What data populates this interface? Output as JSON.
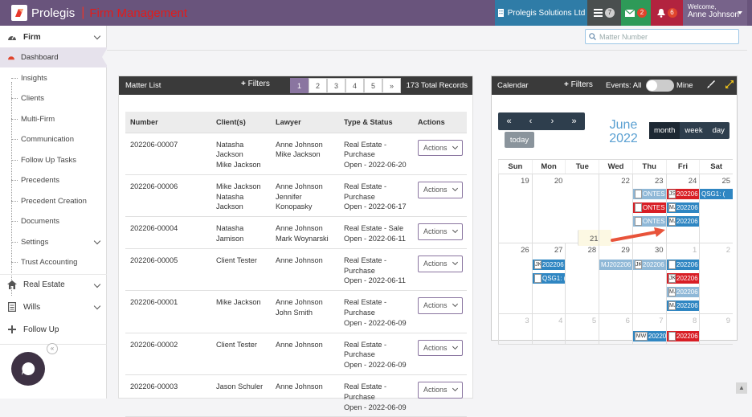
{
  "topbar": {
    "brand": "Prolegis",
    "app_name": "Firm Management",
    "firm": "Prolegis Solutions Ltd",
    "tasks_count": "7",
    "messages_count": "2",
    "notifications_count": "6",
    "welcome": "Welcome,",
    "user": "Anne Johnson",
    "colors": {
      "bar": "#69547c",
      "firm": "#2f7ca7",
      "messages": "#2e9a58",
      "notifications": "#b2233f"
    }
  },
  "search": {
    "placeholder": "Matter Number"
  },
  "sidebar": {
    "firm_label": "Firm",
    "items": [
      {
        "label": "Dashboard"
      },
      {
        "label": "Insights"
      },
      {
        "label": "Clients"
      },
      {
        "label": "Multi-Firm"
      },
      {
        "label": "Communication"
      },
      {
        "label": "Follow Up Tasks"
      },
      {
        "label": "Precedents"
      },
      {
        "label": "Precedent Creation"
      },
      {
        "label": "Documents"
      },
      {
        "label": "Settings"
      },
      {
        "label": "Trust Accounting"
      }
    ],
    "sections": [
      {
        "label": "Real Estate"
      },
      {
        "label": "Wills"
      },
      {
        "label": "Follow Up"
      }
    ]
  },
  "matter_list": {
    "title": "Matter List",
    "filters": "Filters",
    "pages": [
      "1",
      "2",
      "3",
      "4",
      "5",
      "»"
    ],
    "total": "173 Total Records",
    "columns": [
      "Number",
      "Client(s)",
      "Lawyer",
      "Type & Status",
      "Actions"
    ],
    "action_label": "Actions",
    "rows": [
      {
        "number": "202206-00007",
        "clients": [
          "Natasha Jackson",
          "Mike Jackson"
        ],
        "lawyers": [
          "Anne Johnson",
          "Mike Jackson"
        ],
        "type": [
          "Real Estate -",
          "Purchase",
          "Open - 2022-06-20"
        ]
      },
      {
        "number": "202206-00006",
        "clients": [
          "Mike Jackson",
          "Natasha Jackson"
        ],
        "lawyers": [
          "Anne Johnson",
          "Jennifer",
          "Konopasky"
        ],
        "type": [
          "Real Estate -",
          "Purchase",
          "Open - 2022-06-17"
        ]
      },
      {
        "number": "202206-00004",
        "clients": [
          "Natasha Jamison"
        ],
        "lawyers": [
          "Anne Johnson",
          "Mark Woynarski"
        ],
        "type": [
          "Real Estate - Sale",
          "Open - 2022-06-11"
        ]
      },
      {
        "number": "202206-00005",
        "clients": [
          "Client Tester"
        ],
        "lawyers": [
          "Anne Johnson"
        ],
        "type": [
          "Real Estate -",
          "Purchase",
          "Open - 2022-06-11"
        ]
      },
      {
        "number": "202206-00001",
        "clients": [
          "Mike Jackson"
        ],
        "lawyers": [
          "Anne Johnson",
          "John Smith"
        ],
        "type": [
          "Real Estate -",
          "Purchase",
          "Open - 2022-06-09"
        ]
      },
      {
        "number": "202206-00002",
        "clients": [
          "Client Tester"
        ],
        "lawyers": [
          "Anne Johnson"
        ],
        "type": [
          "Real Estate -",
          "Purchase",
          "Open - 2022-06-09"
        ]
      },
      {
        "number": "202206-00003",
        "clients": [
          "Jason Schuler"
        ],
        "lawyers": [
          "Anne Johnson"
        ],
        "type": [
          "Real Estate -",
          "Purchase",
          "Open - 2022-06-09"
        ]
      }
    ]
  },
  "calendar": {
    "title": "Calendar",
    "filters": "Filters",
    "events_label": "Events: All",
    "mine_label": "Mine",
    "nav": [
      "«",
      "‹",
      "›",
      "»"
    ],
    "today": "today",
    "month_title": "June 2022",
    "views": [
      "month",
      "week",
      "day"
    ],
    "days_of_week": [
      "Sun",
      "Mon",
      "Tue",
      "Wed",
      "Thu",
      "Fri",
      "Sat"
    ],
    "weeks": [
      [
        "",
        "",
        "",
        "",
        "",
        "",
        ""
      ],
      [
        "19",
        "20",
        "21",
        "22",
        "23",
        "24",
        "25"
      ],
      [
        "26",
        "27",
        "28",
        "29",
        "30",
        "1",
        "2"
      ],
      [
        "3",
        "4",
        "5",
        "6",
        "7",
        "8",
        "9"
      ]
    ],
    "events": {
      "thu1": "ONTES",
      "fri1": "202206",
      "sat1": "QSG1: (",
      "thu2": "ONTES",
      "fri2": "202206",
      "thu3": "ONTES",
      "fri3": "202206",
      "mon_w2a": "202206",
      "mon_w2b": "QSG1: (",
      "wed_w2": "MJ202206",
      "thu_w2": "202206",
      "fri_w2a": "202206",
      "fri_w2b": "202206",
      "fri_w2c": "202206",
      "fri_w2d": "202206",
      "thu_w3": "202206",
      "fri_w3": "202206"
    },
    "event_initials": {
      "js": "JS",
      "mj": "MJ",
      "jk": "JK",
      "mw": "MW"
    }
  }
}
